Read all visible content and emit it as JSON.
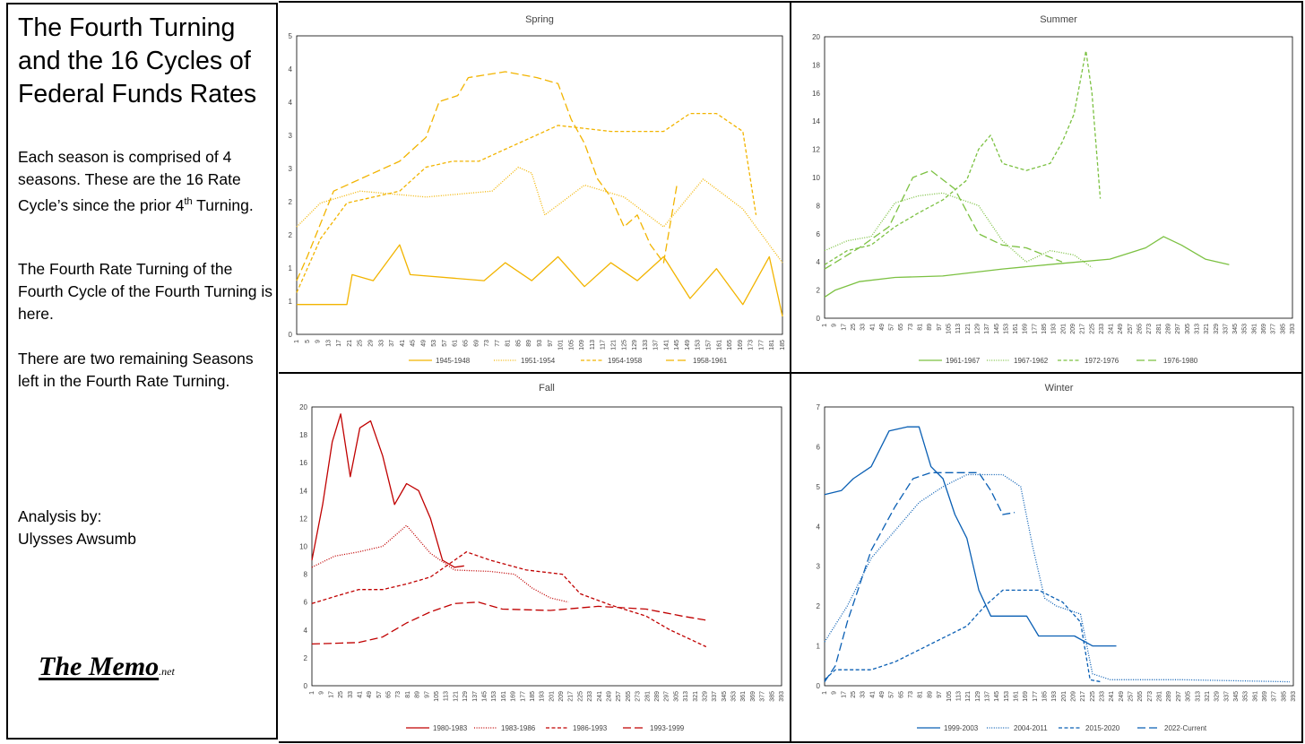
{
  "sidebar": {
    "title": "The Fourth Turning and the 16 Cycles of Federal Funds Rates",
    "para1_main": "Each season is comprised of 4 seasons. These are the 16 Rate Cycle’s since the prior 4",
    "para1_sup": "th",
    "para1_tail": " Turning.",
    "para2": "The Fourth Rate Turning of the Fourth Cycle of the Fourth Turning is here.",
    "para3": "There are two remaining Seasons left in the Fourth Rate Turning.",
    "credit_label": "Analysis by:",
    "credit_name": "Ulysses Awsumb",
    "logo_main": "The Memo",
    "logo_suffix": ".net"
  },
  "chart_data": [
    {
      "type": "line",
      "title": "Spring",
      "color": "#f2b400",
      "ylim": [
        0,
        5
      ],
      "yticks": [
        "0",
        "1",
        "1",
        "2",
        "2",
        "3",
        "3",
        "4",
        "4",
        "5"
      ],
      "x_start": 1,
      "x_step": 4,
      "x_max": 185,
      "series": [
        {
          "name": "1945-1948",
          "dash": "solid",
          "points": [
            [
              1,
              0.5
            ],
            [
              20,
              0.5
            ],
            [
              22,
              1
            ],
            [
              30,
              0.9
            ],
            [
              40,
              1.5
            ],
            [
              44,
              1.0
            ],
            [
              72,
              0.9
            ],
            [
              80,
              1.2
            ],
            [
              90,
              0.9
            ],
            [
              100,
              1.3
            ],
            [
              110,
              0.8
            ],
            [
              120,
              1.2
            ],
            [
              130,
              0.9
            ],
            [
              140,
              1.3
            ],
            [
              150,
              0.6
            ],
            [
              160,
              1.1
            ],
            [
              170,
              0.5
            ],
            [
              180,
              1.3
            ],
            [
              185,
              0.3
            ]
          ]
        },
        {
          "name": "1951-1954",
          "dash": "dot",
          "points": [
            [
              1,
              1.8
            ],
            [
              10,
              2.2
            ],
            [
              25,
              2.4
            ],
            [
              50,
              2.3
            ],
            [
              75,
              2.4
            ],
            [
              85,
              2.8
            ],
            [
              90,
              2.7
            ],
            [
              95,
              2.0
            ],
            [
              110,
              2.5
            ],
            [
              125,
              2.3
            ],
            [
              140,
              1.8
            ],
            [
              155,
              2.6
            ],
            [
              170,
              2.1
            ],
            [
              185,
              1.2
            ]
          ]
        },
        {
          "name": "1954-1958",
          "dash": "dash",
          "points": [
            [
              1,
              0.7
            ],
            [
              10,
              1.6
            ],
            [
              20,
              2.2
            ],
            [
              40,
              2.4
            ],
            [
              45,
              2.6
            ],
            [
              50,
              2.8
            ],
            [
              60,
              2.9
            ],
            [
              70,
              2.9
            ],
            [
              80,
              3.1
            ],
            [
              90,
              3.3
            ],
            [
              100,
              3.5
            ],
            [
              120,
              3.4
            ],
            [
              140,
              3.4
            ],
            [
              150,
              3.7
            ],
            [
              160,
              3.7
            ],
            [
              170,
              3.4
            ],
            [
              175,
              2.0
            ]
          ]
        },
        {
          "name": "1958-1961",
          "dash": "longdash",
          "points": [
            [
              1,
              0.9
            ],
            [
              5,
              1.3
            ],
            [
              15,
              2.4
            ],
            [
              25,
              2.6
            ],
            [
              40,
              2.9
            ],
            [
              50,
              3.3
            ],
            [
              55,
              3.9
            ],
            [
              62,
              4.0
            ],
            [
              66,
              4.3
            ],
            [
              80,
              4.4
            ],
            [
              92,
              4.3
            ],
            [
              100,
              4.2
            ],
            [
              105,
              3.6
            ],
            [
              110,
              3.2
            ],
            [
              115,
              2.6
            ],
            [
              120,
              2.3
            ],
            [
              125,
              1.8
            ],
            [
              130,
              2.0
            ],
            [
              135,
              1.5
            ],
            [
              140,
              1.2
            ],
            [
              145,
              2.5
            ]
          ]
        }
      ]
    },
    {
      "type": "line",
      "title": "Summer",
      "color": "#7cc142",
      "ylim": [
        0,
        20
      ],
      "yticks": [
        "0",
        "2",
        "4",
        "6",
        "8",
        "10",
        "12",
        "14",
        "16",
        "18",
        "20"
      ],
      "x_start": 1,
      "x_step": 8,
      "x_max": 393,
      "series": [
        {
          "name": "1961-1967",
          "dash": "solid",
          "points": [
            [
              1,
              1.5
            ],
            [
              10,
              2.0
            ],
            [
              30,
              2.6
            ],
            [
              60,
              2.9
            ],
            [
              100,
              3.0
            ],
            [
              150,
              3.5
            ],
            [
              200,
              3.9
            ],
            [
              240,
              4.2
            ],
            [
              270,
              5.0
            ],
            [
              285,
              5.8
            ],
            [
              300,
              5.2
            ],
            [
              320,
              4.2
            ],
            [
              340,
              3.8
            ]
          ]
        },
        {
          "name": "1967-1962",
          "dash": "dot",
          "points": [
            [
              1,
              4.8
            ],
            [
              20,
              5.5
            ],
            [
              40,
              5.8
            ],
            [
              60,
              8.2
            ],
            [
              80,
              8.7
            ],
            [
              100,
              8.9
            ],
            [
              130,
              8.0
            ],
            [
              150,
              5.5
            ],
            [
              170,
              4.0
            ],
            [
              190,
              4.8
            ],
            [
              210,
              4.5
            ],
            [
              225,
              3.6
            ]
          ]
        },
        {
          "name": "1972-1976",
          "dash": "dash",
          "points": [
            [
              1,
              3.8
            ],
            [
              20,
              4.8
            ],
            [
              40,
              5.2
            ],
            [
              60,
              6.5
            ],
            [
              80,
              7.5
            ],
            [
              100,
              8.4
            ],
            [
              120,
              9.8
            ],
            [
              130,
              12.0
            ],
            [
              140,
              13.0
            ],
            [
              150,
              11.0
            ],
            [
              170,
              10.5
            ],
            [
              190,
              11.0
            ],
            [
              200,
              12.5
            ],
            [
              210,
              14.5
            ],
            [
              220,
              19.0
            ],
            [
              225,
              16.0
            ],
            [
              232,
              8.5
            ]
          ]
        },
        {
          "name": "1976-1980",
          "dash": "longdash",
          "points": [
            [
              1,
              3.5
            ],
            [
              30,
              5.0
            ],
            [
              55,
              6.5
            ],
            [
              75,
              10.0
            ],
            [
              90,
              10.5
            ],
            [
              110,
              9.2
            ],
            [
              130,
              6.0
            ],
            [
              150,
              5.2
            ],
            [
              170,
              5.0
            ],
            [
              185,
              4.5
            ],
            [
              200,
              4.0
            ]
          ]
        }
      ]
    },
    {
      "type": "line",
      "title": "Fall",
      "color": "#c00000",
      "ylim": [
        0,
        20
      ],
      "yticks": [
        "0",
        "2",
        "4",
        "6",
        "8",
        "10",
        "12",
        "14",
        "16",
        "18",
        "20"
      ],
      "x_start": 1,
      "x_step": 8,
      "x_max": 393,
      "series": [
        {
          "name": "1980-1983",
          "dash": "solid",
          "points": [
            [
              1,
              9.0
            ],
            [
              10,
              13.0
            ],
            [
              18,
              17.5
            ],
            [
              25,
              19.5
            ],
            [
              33,
              15.0
            ],
            [
              41,
              18.5
            ],
            [
              50,
              19.0
            ],
            [
              60,
              16.5
            ],
            [
              70,
              13.0
            ],
            [
              80,
              14.5
            ],
            [
              90,
              14.0
            ],
            [
              100,
              12.0
            ],
            [
              110,
              9.0
            ],
            [
              120,
              8.5
            ],
            [
              128,
              8.6
            ]
          ]
        },
        {
          "name": "1983-1986",
          "dash": "dot",
          "points": [
            [
              1,
              8.5
            ],
            [
              20,
              9.3
            ],
            [
              40,
              9.6
            ],
            [
              60,
              10.0
            ],
            [
              80,
              11.5
            ],
            [
              100,
              9.5
            ],
            [
              120,
              8.3
            ],
            [
              150,
              8.2
            ],
            [
              170,
              8.0
            ],
            [
              185,
              7.0
            ],
            [
              200,
              6.3
            ],
            [
              215,
              6.0
            ]
          ]
        },
        {
          "name": "1986-1993",
          "dash": "dash",
          "points": [
            [
              1,
              5.9
            ],
            [
              20,
              6.4
            ],
            [
              40,
              6.9
            ],
            [
              60,
              6.9
            ],
            [
              80,
              7.3
            ],
            [
              100,
              7.8
            ],
            [
              130,
              9.6
            ],
            [
              150,
              9.0
            ],
            [
              180,
              8.3
            ],
            [
              210,
              8.0
            ],
            [
              225,
              6.6
            ],
            [
              250,
              5.8
            ],
            [
              280,
              5.0
            ],
            [
              300,
              4.0
            ],
            [
              320,
              3.2
            ],
            [
              330,
              2.8
            ]
          ]
        },
        {
          "name": "1993-1999",
          "dash": "longdash",
          "points": [
            [
              1,
              3.0
            ],
            [
              40,
              3.1
            ],
            [
              60,
              3.5
            ],
            [
              80,
              4.5
            ],
            [
              100,
              5.3
            ],
            [
              120,
              5.9
            ],
            [
              140,
              6.0
            ],
            [
              160,
              5.5
            ],
            [
              200,
              5.4
            ],
            [
              240,
              5.7
            ],
            [
              280,
              5.5
            ],
            [
              310,
              5.0
            ],
            [
              330,
              4.7
            ]
          ]
        }
      ]
    },
    {
      "type": "line",
      "title": "Winter",
      "color": "#0a5fb4",
      "ylim": [
        0,
        7
      ],
      "yticks": [
        "0",
        "1",
        "2",
        "3",
        "4",
        "5",
        "6",
        "7"
      ],
      "x_start": 1,
      "x_step": 8,
      "x_max": 393,
      "series": [
        {
          "name": "1999-2003",
          "dash": "solid",
          "points": [
            [
              1,
              4.8
            ],
            [
              15,
              4.9
            ],
            [
              25,
              5.2
            ],
            [
              40,
              5.5
            ],
            [
              55,
              6.4
            ],
            [
              70,
              6.5
            ],
            [
              80,
              6.5
            ],
            [
              90,
              5.5
            ],
            [
              100,
              5.2
            ],
            [
              110,
              4.3
            ],
            [
              120,
              3.7
            ],
            [
              130,
              2.4
            ],
            [
              140,
              1.75
            ],
            [
              170,
              1.75
            ],
            [
              180,
              1.25
            ],
            [
              210,
              1.25
            ],
            [
              225,
              1.0
            ],
            [
              245,
              1.0
            ]
          ]
        },
        {
          "name": "2004-2011",
          "dash": "dot",
          "points": [
            [
              1,
              1.1
            ],
            [
              20,
              2.0
            ],
            [
              40,
              3.2
            ],
            [
              60,
              3.9
            ],
            [
              80,
              4.6
            ],
            [
              100,
              5.0
            ],
            [
              120,
              5.3
            ],
            [
              150,
              5.3
            ],
            [
              165,
              5.0
            ],
            [
              175,
              3.5
            ],
            [
              185,
              2.2
            ],
            [
              195,
              2.0
            ],
            [
              215,
              1.8
            ],
            [
              225,
              0.3
            ],
            [
              240,
              0.15
            ],
            [
              300,
              0.15
            ],
            [
              390,
              0.1
            ]
          ]
        },
        {
          "name": "2015-2020",
          "dash": "dash",
          "points": [
            [
              1,
              0.15
            ],
            [
              10,
              0.4
            ],
            [
              40,
              0.4
            ],
            [
              60,
              0.6
            ],
            [
              80,
              0.9
            ],
            [
              100,
              1.2
            ],
            [
              120,
              1.5
            ],
            [
              135,
              2.0
            ],
            [
              150,
              2.4
            ],
            [
              180,
              2.4
            ],
            [
              200,
              2.1
            ],
            [
              215,
              1.6
            ],
            [
              223,
              0.15
            ],
            [
              232,
              0.1
            ]
          ]
        },
        {
          "name": "2022-Current",
          "dash": "longdash",
          "points": [
            [
              1,
              0.1
            ],
            [
              10,
              0.5
            ],
            [
              20,
              1.6
            ],
            [
              40,
              3.4
            ],
            [
              60,
              4.5
            ],
            [
              75,
              5.2
            ],
            [
              90,
              5.35
            ],
            [
              130,
              5.35
            ],
            [
              140,
              4.9
            ],
            [
              150,
              4.3
            ],
            [
              160,
              4.35
            ]
          ]
        }
      ]
    }
  ]
}
